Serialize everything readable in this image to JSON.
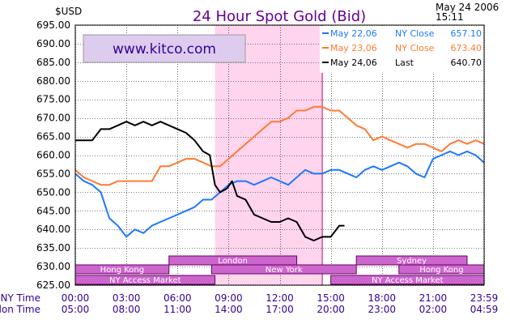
{
  "header": {
    "unit_label": "$USD",
    "title": "24 Hour Spot Gold (Bid)",
    "date": "May 24 2006",
    "time": "15:11",
    "brand": "www.kitco.com"
  },
  "colors": {
    "title": "#660099",
    "brand_box": "#ddccee",
    "brand_text": "#330099",
    "plot_bg": "#ffffff",
    "grid": "#000000",
    "ny_shade": "#ffd5ee",
    "ny_close_line": "#cc0066",
    "bar_fill": "#cc66cc",
    "bar_border": "#660066",
    "bar_text": "#ffffff",
    "time_text": "#330099"
  },
  "chart_data": {
    "type": "line",
    "title": "24 Hour Spot Gold (Bid)",
    "ylabel": "$USD",
    "ylim": [
      625,
      695
    ],
    "y_ticks": [
      "695.00",
      "690.00",
      "685.00",
      "680.00",
      "675.00",
      "670.00",
      "665.00",
      "660.00",
      "655.00",
      "650.00",
      "645.00",
      "640.00",
      "635.00",
      "630.00",
      "625.00"
    ],
    "x_range_hours": [
      0,
      24
    ],
    "x_tick_rows": [
      {
        "label": "NY Time",
        "ticks": [
          "00:00",
          "03:00",
          "06:00",
          "09:00",
          "12:00",
          "15:00",
          "18:00",
          "21:00",
          "23:59"
        ]
      },
      {
        "label": "London Time",
        "ticks": [
          "05:00",
          "08:00",
          "11:00",
          "14:00",
          "17:00",
          "20:00",
          "23:00",
          "02:00",
          "04:59"
        ]
      }
    ],
    "ny_session_hours": [
      8.2,
      14.5
    ],
    "legend": {
      "placement": "top-right",
      "entries": [
        {
          "date": "May 22,06",
          "type": "NY Close",
          "value": "657.10",
          "color": "#1e78ff"
        },
        {
          "date": "May 23,06",
          "type": "NY Close",
          "value": "673.40",
          "color": "#ff7a33"
        },
        {
          "date": "May 24,06",
          "type": "Last",
          "value": "640.70",
          "color": "#000000"
        }
      ]
    },
    "series": [
      {
        "name": "May 22,06",
        "color": "#1e78ff",
        "x": [
          0,
          0.5,
          1,
          1.5,
          2,
          2.5,
          3,
          3.5,
          4,
          4.5,
          5,
          5.5,
          6,
          6.5,
          7,
          7.5,
          8,
          8.5,
          9,
          9.5,
          10,
          10.5,
          11,
          11.5,
          12,
          12.5,
          13,
          13.5,
          14,
          14.5,
          15,
          15.5,
          16,
          16.5,
          17,
          17.5,
          18,
          18.5,
          19,
          19.5,
          20,
          20.5,
          21,
          21.5,
          22,
          22.5,
          23,
          23.5,
          24
        ],
        "y": [
          655,
          653,
          652,
          650,
          643,
          641,
          638,
          640,
          639,
          641,
          642,
          643,
          644,
          645,
          646,
          648,
          648,
          650,
          652,
          653,
          653,
          652,
          653,
          654,
          653,
          652,
          654,
          656,
          655,
          655,
          656,
          656,
          655,
          654,
          656,
          657,
          656,
          657,
          658,
          657,
          655,
          654,
          659,
          660,
          661,
          660,
          661,
          660,
          658
        ]
      },
      {
        "name": "May 23,06",
        "color": "#ff7a33",
        "x": [
          0,
          0.5,
          1,
          1.5,
          2,
          2.5,
          3,
          3.5,
          4,
          4.5,
          5,
          5.5,
          6,
          6.5,
          7,
          7.5,
          8,
          8.5,
          9,
          9.5,
          10,
          10.5,
          11,
          11.5,
          12,
          12.5,
          13,
          13.5,
          14,
          14.5,
          15,
          15.5,
          16,
          16.5,
          17,
          17.5,
          18,
          18.5,
          19,
          19.5,
          20,
          20.5,
          21,
          21.5,
          22,
          22.5,
          23,
          23.5,
          24
        ],
        "y": [
          656,
          654,
          653,
          652,
          652,
          653,
          653,
          653,
          653,
          653,
          657,
          657,
          658,
          659,
          659,
          658,
          657,
          657,
          659,
          661,
          663,
          665,
          667,
          669,
          669,
          670,
          672,
          672,
          673,
          673,
          672,
          672,
          670,
          668,
          667,
          664,
          665,
          664,
          663,
          662,
          663,
          663,
          662,
          661,
          663,
          664,
          663,
          664,
          663
        ]
      },
      {
        "name": "May 24,06",
        "color": "#000000",
        "x": [
          0,
          0.5,
          1,
          1.5,
          2,
          2.5,
          3,
          3.5,
          4,
          4.5,
          5,
          5.5,
          6,
          6.5,
          7,
          7.5,
          7.9,
          8.2,
          8.5,
          8.9,
          9.2,
          9.5,
          10,
          10.5,
          11,
          11.5,
          12,
          12.5,
          13,
          13.5,
          14,
          14.5,
          15,
          15.5,
          15.8
        ],
        "y": [
          664,
          664,
          664,
          667,
          667,
          668,
          669,
          668,
          669,
          668,
          669,
          668,
          667,
          666,
          664,
          661,
          660,
          652,
          650,
          651,
          653,
          649,
          648,
          644,
          643,
          642,
          642,
          643,
          642,
          638,
          637,
          638,
          638,
          641,
          641
        ]
      }
    ]
  },
  "sessions": [
    {
      "label": "Hong Kong",
      "row": 1,
      "start": 0,
      "end": 5.5
    },
    {
      "label": "London",
      "row": 0,
      "start": 5.5,
      "end": 13.0
    },
    {
      "label": "New York",
      "row": 1,
      "start": 8.0,
      "end": 16.5
    },
    {
      "label": "NY Access Market",
      "row": 2,
      "start": 0,
      "end": 8.2
    },
    {
      "label": "Sydney",
      "row": 0,
      "start": 16.5,
      "end": 23.0
    },
    {
      "label": "Hong Kong",
      "row": 1,
      "start": 19.0,
      "end": 24.0
    },
    {
      "label": "NY Access Market",
      "row": 2,
      "start": 15.0,
      "end": 24.0
    }
  ]
}
